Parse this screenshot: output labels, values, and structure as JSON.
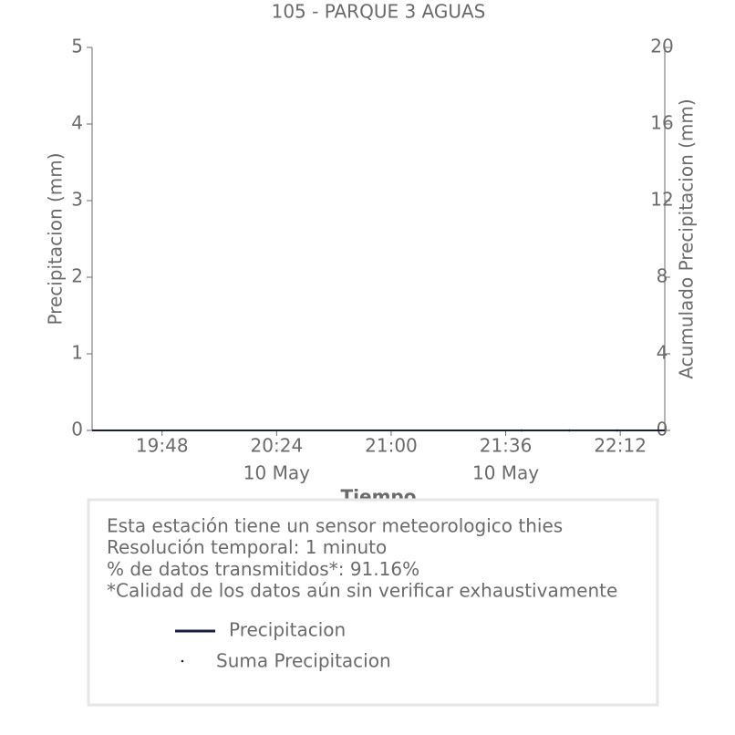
{
  "chart_data": {
    "type": "line",
    "title": "105 - PARQUE 3 AGUAS",
    "x_label": "Tiempo",
    "y_label": "Precipitacion (mm)",
    "y2_label": "Acumulado Precipitacion (mm)",
    "x": [
      "19:26",
      "19:41",
      "19:56",
      "20:11",
      "20:26",
      "20:41",
      "20:56",
      "21:11",
      "21:26",
      "21:41",
      "21:56",
      "22:11",
      "22:26"
    ],
    "xlim": [
      "19:26",
      "22:26"
    ],
    "xticks": [
      "19:48",
      "20:24",
      "21:00",
      "21:36",
      "22:12"
    ],
    "xtick_dates": [
      null,
      "10 May",
      null,
      "10 May",
      null
    ],
    "ylim": [
      0,
      5
    ],
    "yticks": [
      0,
      1,
      2,
      3,
      4,
      5
    ],
    "y2lim": [
      0,
      20
    ],
    "y2ticks": [
      0,
      4,
      8,
      12,
      16,
      20
    ],
    "series": [
      {
        "name": "Precipitacion",
        "color": "#1b1f3f",
        "values": [
          0,
          0,
          0,
          0,
          0,
          0,
          0,
          0,
          0,
          0,
          0,
          0,
          0
        ]
      },
      {
        "name": "Suma Precipitacion",
        "color": "#1b1f3f",
        "axis": "y2",
        "marker": "dot",
        "values": [
          null,
          null,
          null,
          null,
          null,
          null,
          null,
          null,
          null,
          0,
          0,
          0,
          null
        ]
      }
    ],
    "notes": [
      "Esta estación tiene un sensor meteorologico thies",
      "Resolución temporal: 1 minuto",
      "% de datos transmitidos*: 91.16%",
      "*Calidad de los datos aún sin verificar exhaustivamente"
    ]
  }
}
